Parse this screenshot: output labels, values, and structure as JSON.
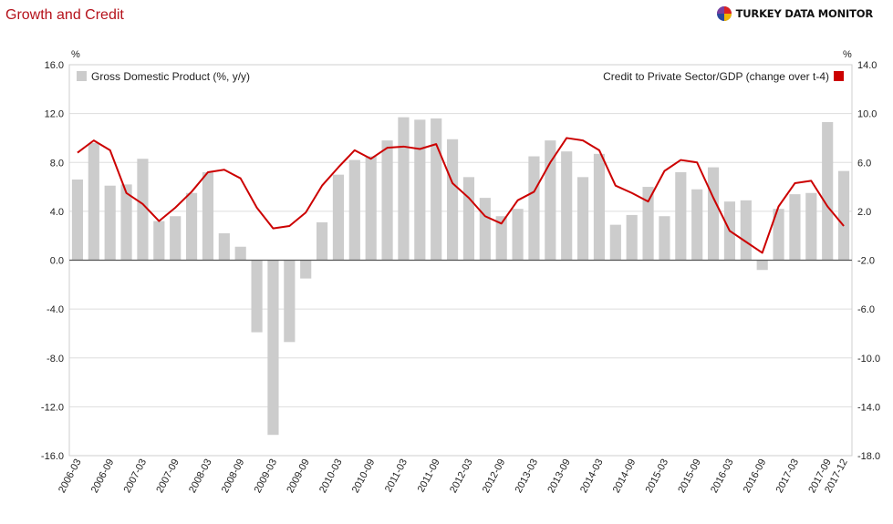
{
  "header": {
    "title": "Growth and Credit",
    "brand": "TURKEY DATA MONITOR"
  },
  "chart_data": {
    "type": "bar+line",
    "left_axis_unit": "%",
    "right_axis_unit": "%",
    "left_ylim": [
      -16,
      16
    ],
    "right_ylim": [
      -18,
      14
    ],
    "left_ticks": [
      "16.0",
      "12.0",
      "8.0",
      "4.0",
      "0.0",
      "-4.0",
      "-8.0",
      "-12.0",
      "-16.0"
    ],
    "right_ticks": [
      "14.0",
      "10.0",
      "6.0",
      "2.0",
      "-2.0",
      "-6.0",
      "-10.0",
      "-14.0",
      "-18.0"
    ],
    "x_tick_labels": [
      "2006-03",
      "2006-09",
      "2007-03",
      "2007-09",
      "2008-03",
      "2008-09",
      "2009-03",
      "2009-09",
      "2010-03",
      "2010-09",
      "2011-03",
      "2011-09",
      "2012-03",
      "2012-09",
      "2013-03",
      "2013-09",
      "2014-03",
      "2014-09",
      "2015-03",
      "2015-09",
      "2016-03",
      "2016-09",
      "2017-03",
      "2017-09",
      "2017-12"
    ],
    "categories": [
      "2006-03",
      "2006-06",
      "2006-09",
      "2006-12",
      "2007-03",
      "2007-06",
      "2007-09",
      "2007-12",
      "2008-03",
      "2008-06",
      "2008-09",
      "2008-12",
      "2009-03",
      "2009-06",
      "2009-09",
      "2009-12",
      "2010-03",
      "2010-06",
      "2010-09",
      "2010-12",
      "2011-03",
      "2011-06",
      "2011-09",
      "2011-12",
      "2012-03",
      "2012-06",
      "2012-09",
      "2012-12",
      "2013-03",
      "2013-06",
      "2013-09",
      "2013-12",
      "2014-03",
      "2014-06",
      "2014-09",
      "2014-12",
      "2015-03",
      "2015-06",
      "2015-09",
      "2015-12",
      "2016-03",
      "2016-06",
      "2016-09",
      "2016-12",
      "2017-03",
      "2017-06",
      "2017-09",
      "2017-12"
    ],
    "series": [
      {
        "name": "Gross Domestic Product (%, y/y)",
        "axis": "left",
        "kind": "bar",
        "color": "#cccccc",
        "values": [
          6.6,
          9.6,
          6.1,
          6.2,
          8.3,
          3.2,
          3.6,
          5.5,
          7.2,
          2.2,
          1.1,
          -5.9,
          -14.3,
          -6.7,
          -1.5,
          3.1,
          7.0,
          8.2,
          8.5,
          9.8,
          11.7,
          11.5,
          11.6,
          9.9,
          6.8,
          5.1,
          3.6,
          4.2,
          8.5,
          9.8,
          8.9,
          6.8,
          8.7,
          2.9,
          3.7,
          6.0,
          3.6,
          7.2,
          5.8,
          7.6,
          4.8,
          4.9,
          -0.8,
          4.2,
          5.4,
          5.5,
          11.3,
          7.3
        ]
      },
      {
        "name": "Credit to Private Sector/GDP (change over t-4)",
        "axis": "right",
        "kind": "line",
        "color": "#cc0000",
        "values": [
          6.8,
          7.8,
          7.0,
          3.5,
          2.6,
          1.2,
          2.3,
          3.6,
          5.2,
          5.4,
          4.7,
          2.3,
          0.6,
          0.8,
          1.9,
          4.1,
          5.6,
          7.0,
          6.3,
          7.2,
          7.3,
          7.1,
          7.5,
          4.3,
          3.1,
          1.6,
          1.0,
          2.9,
          3.6,
          6.0,
          8.0,
          7.8,
          7.0,
          4.1,
          3.5,
          2.8,
          5.3,
          6.2,
          6.0,
          3.1,
          0.4,
          -0.5,
          -1.4,
          2.4,
          4.3,
          4.5,
          2.4,
          0.8
        ]
      }
    ],
    "zero_line": true,
    "grid": true,
    "legend": [
      "top-left",
      "top-right"
    ]
  }
}
